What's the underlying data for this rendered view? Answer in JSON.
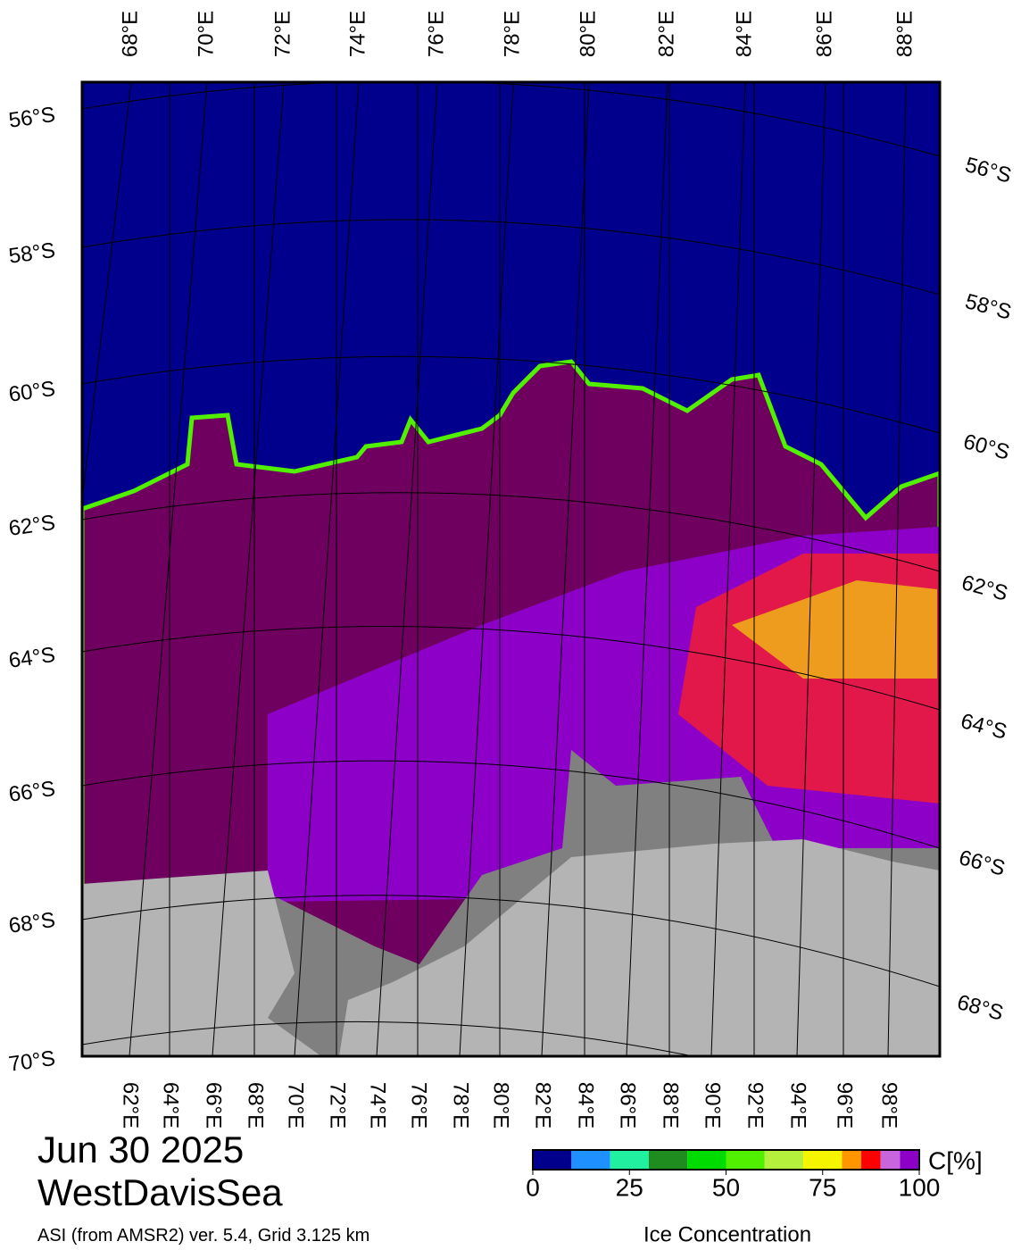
{
  "map": {
    "top_lon_labels": [
      "68°E",
      "70°E",
      "72°E",
      "74°E",
      "76°E",
      "78°E",
      "80°E",
      "82°E",
      "84°E",
      "86°E",
      "88°E"
    ],
    "bottom_lon_labels": [
      "62°E",
      "64°E",
      "66°E",
      "68°E",
      "70°E",
      "72°E",
      "74°E",
      "76°E",
      "78°E",
      "80°E",
      "82°E",
      "84°E",
      "86°E",
      "88°E",
      "90°E",
      "92°E",
      "94°E",
      "96°E",
      "98°E"
    ],
    "left_lat_labels": [
      "56°S",
      "58°S",
      "60°S",
      "62°S",
      "64°S",
      "66°S",
      "68°S",
      "70°S"
    ],
    "right_lat_labels": [
      "56°S",
      "58°S",
      "60°S",
      "62°S",
      "64°S",
      "66°S",
      "68°S"
    ]
  },
  "header": {
    "date": "Jun 30 2025",
    "region": "WestDavisSea",
    "source": "ASI (from AMSR2) ver. 5.4,  Grid 3.125 km"
  },
  "colorbar": {
    "unit": "C[%]",
    "label": "Ice Concentration",
    "lim": [
      0,
      100
    ],
    "ticks": [
      0,
      25,
      50,
      75,
      100
    ],
    "segments": [
      {
        "from": 0,
        "to": 10,
        "color": "#00008c"
      },
      {
        "from": 10,
        "to": 20,
        "color": "#1e90ff"
      },
      {
        "from": 20,
        "to": 30,
        "color": "#20f0a0"
      },
      {
        "from": 30,
        "to": 40,
        "color": "#1e8c1e"
      },
      {
        "from": 40,
        "to": 50,
        "color": "#00dc00"
      },
      {
        "from": 50,
        "to": 60,
        "color": "#50f000"
      },
      {
        "from": 60,
        "to": 70,
        "color": "#b4f03c"
      },
      {
        "from": 70,
        "to": 80,
        "color": "#f5f500"
      },
      {
        "from": 80,
        "to": 85,
        "color": "#ff9600"
      },
      {
        "from": 85,
        "to": 90,
        "color": "#ff0000"
      },
      {
        "from": 90,
        "to": 95,
        "color": "#c864dc"
      },
      {
        "from": 95,
        "to": 100,
        "color": "#8c00c8"
      }
    ]
  }
}
